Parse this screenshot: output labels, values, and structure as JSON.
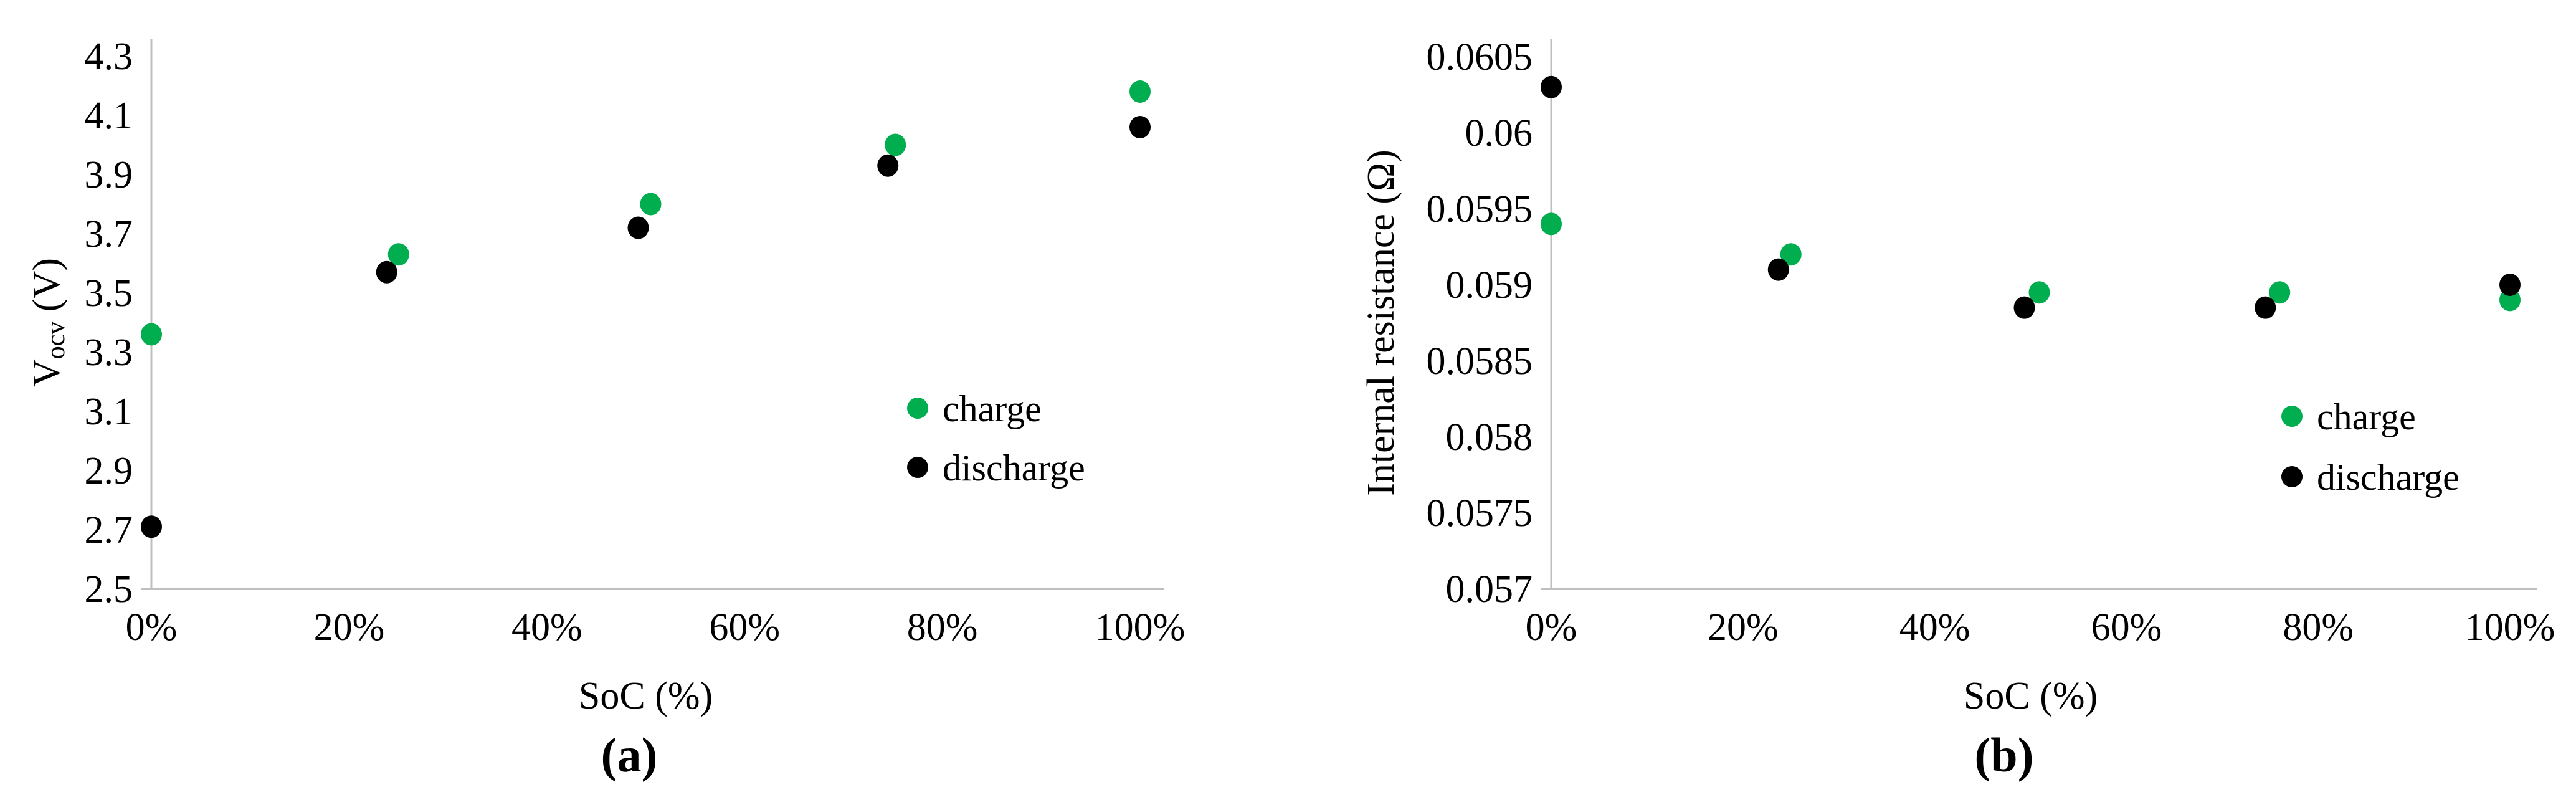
{
  "figure": {
    "description_visible_text_only": true,
    "colors": {
      "charge": "#00AE4F",
      "discharge": "#000000",
      "axis_line": "#BFBFBF",
      "text": "#000000",
      "background": "#FFFFFF"
    }
  },
  "chart_data": [
    {
      "id": "a",
      "type": "scatter",
      "caption": "(a)",
      "xlabel": "SoC (%)",
      "ylabel": "Vocv (V)",
      "ylabel_parts": [
        {
          "text": "V",
          "sub": false
        },
        {
          "text": "ocv",
          "sub": true
        },
        {
          "text": " (V)",
          "sub": false
        }
      ],
      "xlim": [
        0,
        100
      ],
      "ylim": [
        2.5,
        4.3
      ],
      "grid": false,
      "legend_position": "inside-right",
      "xticks": [
        {
          "value": 0,
          "label": "0%"
        },
        {
          "value": 20,
          "label": "20%"
        },
        {
          "value": 40,
          "label": "40%"
        },
        {
          "value": 60,
          "label": "60%"
        },
        {
          "value": 80,
          "label": "80%"
        },
        {
          "value": 100,
          "label": "100%"
        }
      ],
      "yticks": [
        {
          "value": 2.5,
          "label": "2.5"
        },
        {
          "value": 2.7,
          "label": "2.7"
        },
        {
          "value": 2.9,
          "label": "2.9"
        },
        {
          "value": 3.1,
          "label": "3.1"
        },
        {
          "value": 3.3,
          "label": "3.3"
        },
        {
          "value": 3.5,
          "label": "3.5"
        },
        {
          "value": 3.7,
          "label": "3.7"
        },
        {
          "value": 3.9,
          "label": "3.9"
        },
        {
          "value": 4.1,
          "label": "4.1"
        },
        {
          "value": 4.3,
          "label": "4.3"
        }
      ],
      "x": [
        0,
        25,
        50,
        75,
        100
      ],
      "series": [
        {
          "name": "charge",
          "color": "#00AE4F",
          "values": [
            3.36,
            3.63,
            3.8,
            4.0,
            4.18
          ],
          "dx": [
            0,
            0,
            8,
            4,
            0
          ]
        },
        {
          "name": "discharge",
          "color": "#000000",
          "values": [
            2.71,
            3.57,
            3.72,
            3.93,
            4.06
          ],
          "dx": [
            0,
            -19,
            -12,
            -8,
            0
          ]
        }
      ]
    },
    {
      "id": "b",
      "type": "scatter",
      "caption": "(b)",
      "xlabel": "SoC (%)",
      "ylabel": "Internal resistance (Ω)",
      "ylabel_parts": [
        {
          "text": "Internal resistance (Ω)",
          "sub": false
        }
      ],
      "xlim": [
        0,
        100
      ],
      "ylim": [
        0.057,
        0.0605
      ],
      "grid": false,
      "legend_position": "inside-right",
      "xticks": [
        {
          "value": 0,
          "label": "0%"
        },
        {
          "value": 20,
          "label": "20%"
        },
        {
          "value": 40,
          "label": "40%"
        },
        {
          "value": 60,
          "label": "60%"
        },
        {
          "value": 80,
          "label": "80%"
        },
        {
          "value": 100,
          "label": "100%"
        }
      ],
      "yticks": [
        {
          "value": 0.057,
          "label": "0.057"
        },
        {
          "value": 0.0575,
          "label": "0.0575"
        },
        {
          "value": 0.058,
          "label": "0.058"
        },
        {
          "value": 0.0585,
          "label": "0.0585"
        },
        {
          "value": 0.059,
          "label": "0.059"
        },
        {
          "value": 0.0595,
          "label": "0.0595"
        },
        {
          "value": 0.06,
          "label": "0.06"
        },
        {
          "value": 0.0605,
          "label": "0.0605"
        }
      ],
      "x": [
        0,
        25,
        50,
        75,
        100
      ],
      "series": [
        {
          "name": "charge",
          "color": "#00AE4F",
          "values": [
            0.0594,
            0.0592,
            0.05895,
            0.05895,
            0.0589
          ],
          "dx": [
            0,
            0,
            14,
            15,
            0
          ]
        },
        {
          "name": "discharge",
          "color": "#000000",
          "values": [
            0.0603,
            0.0591,
            0.05885,
            0.05885,
            0.059
          ],
          "dx": [
            0,
            -20,
            -10,
            -8,
            0
          ]
        }
      ]
    }
  ]
}
